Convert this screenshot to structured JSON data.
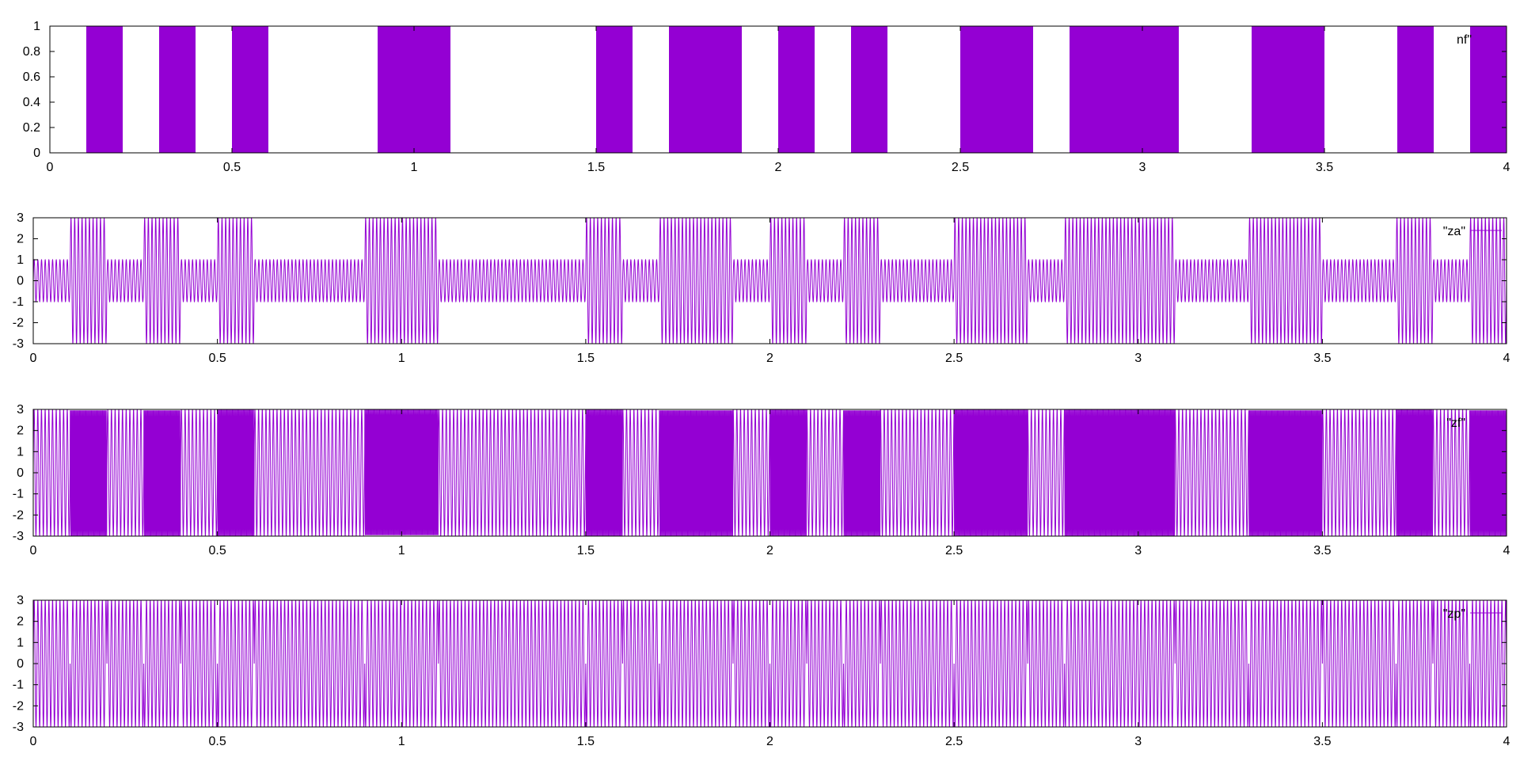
{
  "colors": {
    "series": "#9400d3",
    "axes": "#000000",
    "background": "#ffffff"
  },
  "chart_data": [
    {
      "type": "bar",
      "style": "pulse-fill",
      "xlim": [
        0,
        4
      ],
      "ylim": [
        0,
        1
      ],
      "x_ticks": [
        "0",
        "0.5",
        "1",
        "1.5",
        "2",
        "2.5",
        "3",
        "3.5",
        "4"
      ],
      "y_ticks": [
        "0",
        "0.2",
        "0.4",
        "0.6",
        "0.8",
        "1"
      ],
      "y_tick_values": [
        0,
        0.2,
        0.4,
        0.6,
        0.8,
        1
      ],
      "legend": "nf\"",
      "legend_position": "top-right",
      "bit_period": 0.1,
      "bits": [
        0,
        1,
        0,
        1,
        0,
        1,
        0,
        0,
        0,
        1,
        1,
        0,
        0,
        0,
        0,
        1,
        0,
        1,
        1,
        0,
        1,
        0,
        1,
        0,
        0,
        1,
        1,
        0,
        1,
        1,
        1,
        0,
        0,
        1,
        1,
        0,
        0,
        1,
        0,
        1
      ]
    },
    {
      "type": "line",
      "style": "amplitude-modulated-carrier",
      "xlim": [
        0,
        4
      ],
      "ylim": [
        -3,
        3
      ],
      "x_ticks": [
        "0",
        "0.5",
        "1",
        "1.5",
        "2",
        "2.5",
        "3",
        "3.5",
        "4"
      ],
      "y_ticks": [
        "-3",
        "-2",
        "-1",
        "0",
        "1",
        "2",
        "3"
      ],
      "y_tick_values": [
        -3,
        -2,
        -1,
        0,
        1,
        2,
        3
      ],
      "legend": "\"za\"",
      "legend_position": "top-right",
      "amplitude_bit0": 1,
      "amplitude_bit1": 3,
      "carrier_cycles_per_bit": 10
    },
    {
      "type": "line",
      "style": "frequency-modulated-carrier",
      "xlim": [
        0,
        4
      ],
      "ylim": [
        -3,
        3
      ],
      "x_ticks": [
        "0",
        "0.5",
        "1",
        "1.5",
        "2",
        "2.5",
        "3",
        "3.5",
        "4"
      ],
      "y_ticks": [
        "-3",
        "-2",
        "-1",
        "0",
        "1",
        "2",
        "3"
      ],
      "y_tick_values": [
        -3,
        -2,
        -1,
        0,
        1,
        2,
        3
      ],
      "legend": "\"zf\"",
      "legend_position": "top-right",
      "amplitude": 3,
      "cycles_per_bit_bit0": 10,
      "cycles_per_bit_bit1": 40
    },
    {
      "type": "line",
      "style": "phase-modulated-carrier",
      "xlim": [
        0,
        4
      ],
      "ylim": [
        -3,
        3
      ],
      "x_ticks": [
        "0",
        "0.5",
        "1",
        "1.5",
        "2",
        "2.5",
        "3",
        "3.5",
        "4"
      ],
      "y_ticks": [
        "-3",
        "-2",
        "-1",
        "0",
        "1",
        "2",
        "3"
      ],
      "y_tick_values": [
        -3,
        -2,
        -1,
        0,
        1,
        2,
        3
      ],
      "legend": "\"zp\"",
      "legend_position": "top-right",
      "amplitude": 3,
      "carrier_cycles_per_bit": 10
    }
  ]
}
